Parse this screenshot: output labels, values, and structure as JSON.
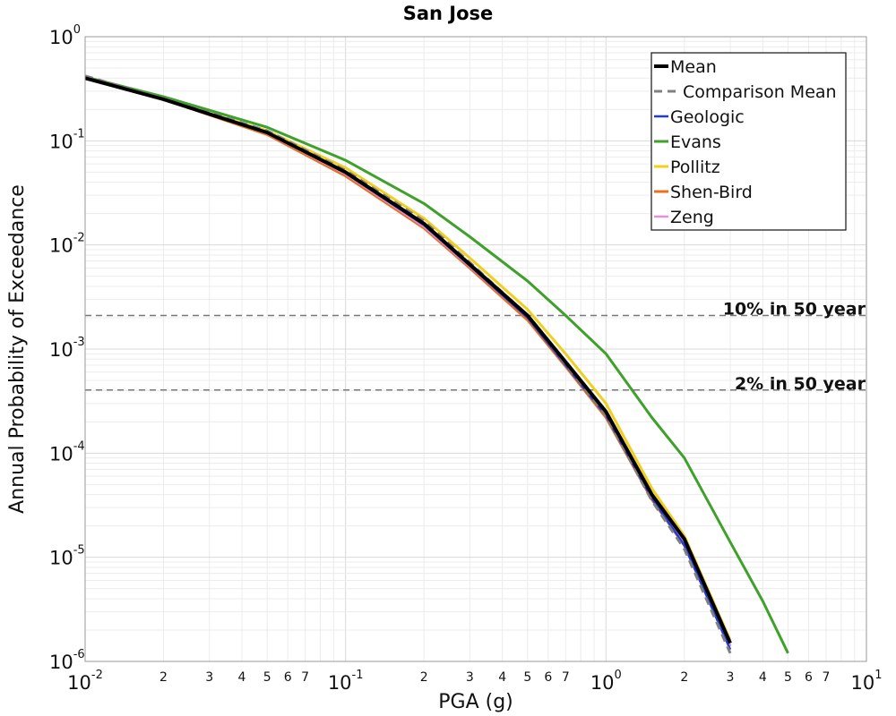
{
  "chart_data": {
    "type": "line",
    "title": "San Jose",
    "xlabel": "PGA (g)",
    "ylabel": "Annual Probability of Exceedance",
    "xscale": "log",
    "yscale": "log",
    "xlim": [
      0.01,
      10
    ],
    "ylim": [
      1e-06,
      1
    ],
    "grid": true,
    "legend_position": "top-right",
    "x_tick_labels": [
      {
        "value": 0.01,
        "base": "10",
        "exp": "-2"
      },
      {
        "value": 0.1,
        "base": "10",
        "exp": "-1"
      },
      {
        "value": 1,
        "base": "10",
        "exp": "0"
      },
      {
        "value": 10,
        "base": "10",
        "exp": "1"
      }
    ],
    "x_minor_tick_labels": [
      "2",
      "3",
      "4",
      "5",
      "6",
      "7"
    ],
    "y_tick_labels": [
      {
        "value": 1,
        "base": "10",
        "exp": "0"
      },
      {
        "value": 0.1,
        "base": "10",
        "exp": "-1"
      },
      {
        "value": 0.01,
        "base": "10",
        "exp": "-2"
      },
      {
        "value": 0.001,
        "base": "10",
        "exp": "-3"
      },
      {
        "value": 0.0001,
        "base": "10",
        "exp": "-4"
      },
      {
        "value": 1e-05,
        "base": "10",
        "exp": "-5"
      },
      {
        "value": 1e-06,
        "base": "10",
        "exp": "-6"
      }
    ],
    "x": [
      0.01,
      0.02,
      0.05,
      0.1,
      0.2,
      0.3,
      0.5,
      0.7,
      1.0,
      1.5,
      2.0,
      3.0,
      4.0,
      5.0
    ],
    "series": [
      {
        "name": "Mean",
        "color": "#000000",
        "style": "solid",
        "width": 4,
        "values": [
          0.4,
          0.25,
          0.12,
          0.05,
          0.016,
          0.0065,
          0.0021,
          0.00075,
          0.00025,
          4e-05,
          1.5e-05,
          1.5e-06,
          null,
          null
        ]
      },
      {
        "name": "Comparison Mean",
        "color": "#808080",
        "style": "dashed",
        "width": 3,
        "values": [
          0.42,
          0.255,
          0.125,
          0.052,
          0.017,
          0.0068,
          0.0021,
          0.00072,
          0.00023,
          3.5e-05,
          1.2e-05,
          1.2e-06,
          null,
          null
        ]
      },
      {
        "name": "Geologic",
        "color": "#1f3bdc",
        "style": "solid",
        "width": 2.5,
        "values": [
          0.4,
          0.25,
          0.12,
          0.049,
          0.0155,
          0.0063,
          0.002,
          0.0007,
          0.00023,
          3.7e-05,
          1.3e-05,
          1.3e-06,
          null,
          null
        ]
      },
      {
        "name": "Evans",
        "color": "#3ea12a",
        "style": "solid",
        "width": 3,
        "values": [
          0.41,
          0.265,
          0.135,
          0.065,
          0.025,
          0.012,
          0.0045,
          0.0021,
          0.0009,
          0.00022,
          9e-05,
          1.4e-05,
          3.8e-06,
          1.2e-06
        ]
      },
      {
        "name": "Pollitz",
        "color": "#f0cf1e",
        "style": "solid",
        "width": 3,
        "values": [
          0.4,
          0.25,
          0.125,
          0.055,
          0.018,
          0.0075,
          0.0024,
          0.0009,
          0.0003,
          4.6e-05,
          1.6e-05,
          1.6e-06,
          null,
          null
        ]
      },
      {
        "name": "Shen-Bird",
        "color": "#e8701e",
        "style": "solid",
        "width": 3,
        "values": [
          0.4,
          0.25,
          0.115,
          0.046,
          0.0145,
          0.006,
          0.0019,
          0.00068,
          0.00022,
          3.6e-05,
          1.3e-05,
          1.4e-06,
          null,
          null
        ]
      },
      {
        "name": "Zeng",
        "color": "#e98fd6",
        "style": "solid",
        "width": 2.5,
        "values": [
          0.4,
          0.25,
          0.118,
          0.048,
          0.015,
          0.0062,
          0.002,
          0.00071,
          0.00024,
          3.8e-05,
          1.4e-05,
          1.4e-06,
          null,
          null
        ]
      }
    ],
    "reference_lines": [
      {
        "label": "10% in 50 year",
        "y": 0.0021
      },
      {
        "label": "2% in 50 year",
        "y": 0.000404
      }
    ]
  }
}
